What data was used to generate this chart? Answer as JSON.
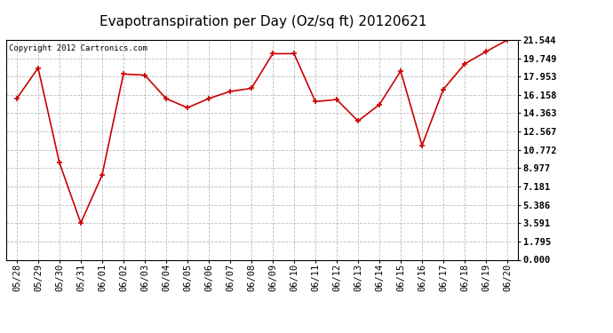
{
  "title": "Evapotranspiration per Day (Oz/sq ft) 20120621",
  "copyright": "Copyright 2012 Cartronics.com",
  "x_labels": [
    "05/28",
    "05/29",
    "05/30",
    "05/31",
    "06/01",
    "06/02",
    "06/03",
    "06/04",
    "06/05",
    "06/06",
    "06/07",
    "06/08",
    "06/09",
    "06/10",
    "06/11",
    "06/12",
    "06/13",
    "06/14",
    "06/15",
    "06/16",
    "06/17",
    "06/18",
    "06/19",
    "06/20"
  ],
  "y_values": [
    15.8,
    18.8,
    9.5,
    3.6,
    8.3,
    18.2,
    18.1,
    15.8,
    14.9,
    15.8,
    16.5,
    16.8,
    20.2,
    20.2,
    15.5,
    15.7,
    13.6,
    15.2,
    18.5,
    11.2,
    16.7,
    19.2,
    20.4,
    21.544
  ],
  "y_ticks": [
    0.0,
    1.795,
    3.591,
    5.386,
    7.181,
    8.977,
    10.772,
    12.567,
    14.363,
    16.158,
    17.953,
    19.749,
    21.544
  ],
  "line_color": "#cc0000",
  "marker_color": "#cc0000",
  "bg_color": "#ffffff",
  "plot_bg_color": "#ffffff",
  "grid_color": "#bbbbbb",
  "title_fontsize": 11,
  "copyright_fontsize": 6.5,
  "tick_fontsize": 7.5,
  "ylim": [
    0.0,
    21.544
  ]
}
